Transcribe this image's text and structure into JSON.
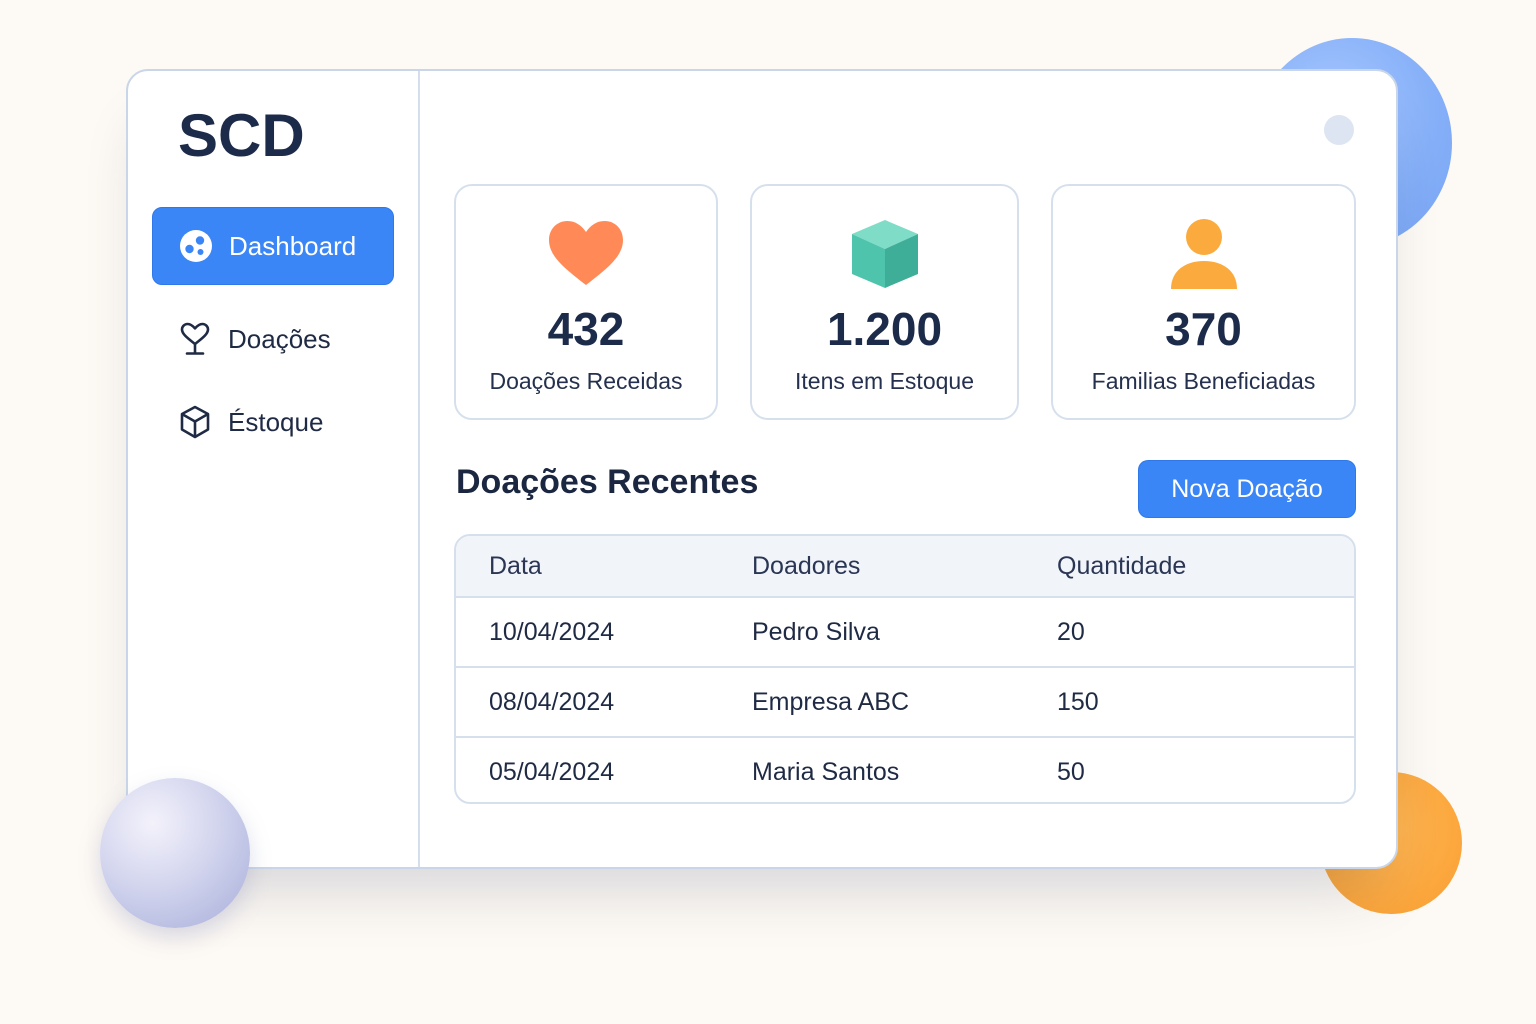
{
  "app": {
    "brand": "SCD"
  },
  "sidebar": {
    "items": [
      {
        "label": "Dashboard",
        "icon": "dashboard-icon",
        "active": true
      },
      {
        "label": "Doações",
        "icon": "heart-outline-icon",
        "active": false
      },
      {
        "label": "Éstoque",
        "icon": "box-outline-icon",
        "active": false
      }
    ]
  },
  "stats": [
    {
      "value": "432",
      "label": "Doações Receidas",
      "icon": "heart-icon",
      "color": "#ff8a57"
    },
    {
      "value": "1.200",
      "label": "Itens em Estoque",
      "icon": "cube-icon",
      "color": "#4fc4ad"
    },
    {
      "value": "370",
      "label": "Familias Beneficiadas",
      "icon": "person-icon",
      "color": "#fbab3d"
    }
  ],
  "recent": {
    "title": "Doações Recentes",
    "new_button": "Nova Doação",
    "columns": [
      "Data",
      "Doadores",
      "Quantidade"
    ],
    "rows": [
      [
        "10/04/2024",
        "Pedro Silva",
        "20"
      ],
      [
        "08/04/2024",
        "Empresa ABC",
        "150"
      ],
      [
        "05/04/2024",
        "Maria Santos",
        "50"
      ]
    ]
  },
  "colors": {
    "accent": "#3b86f7",
    "text_dark": "#1d2b4a",
    "border": "#d6e0ed"
  }
}
